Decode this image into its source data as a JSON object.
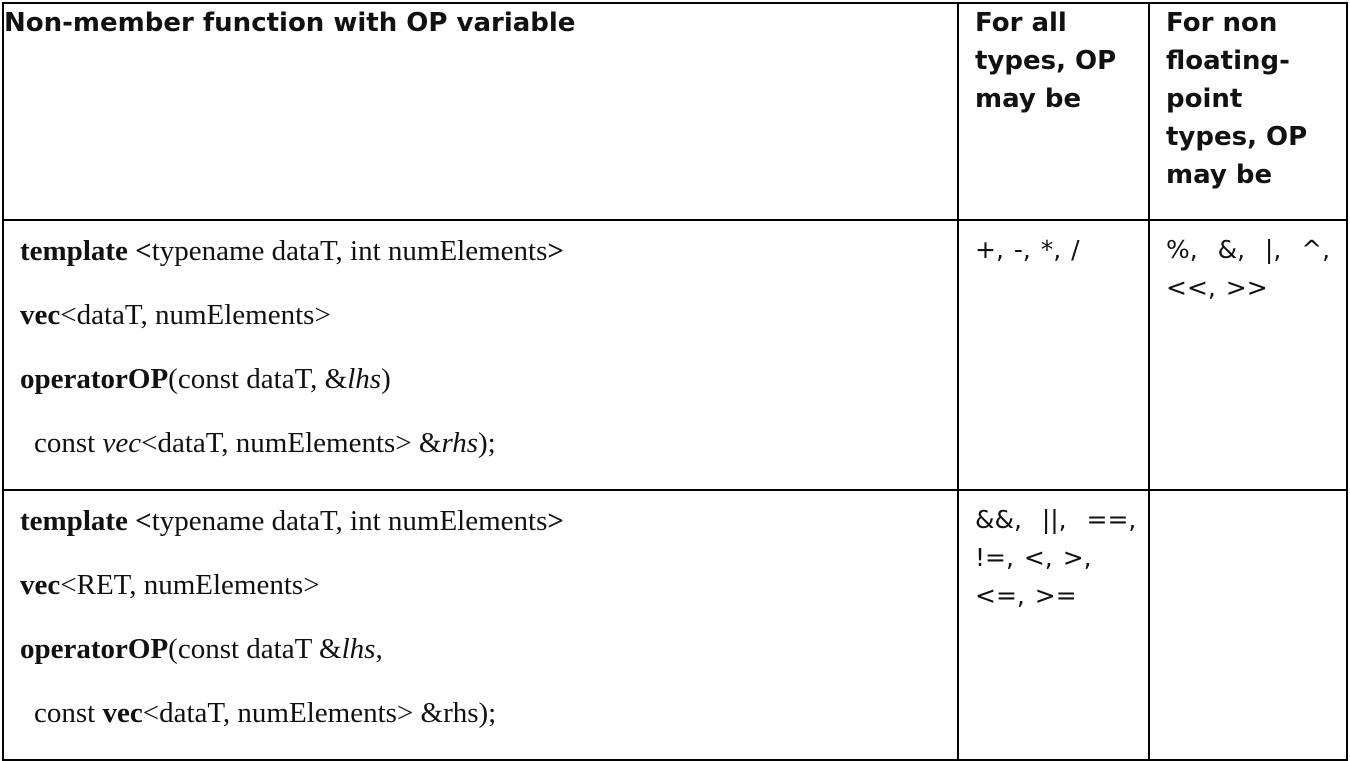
{
  "header": {
    "col1": "Non-member function with OP variable",
    "col2": "For all types, OP may be",
    "col3": "For non floating-point types, OP may be"
  },
  "rows": [
    {
      "lines": [
        {
          "kw": "template",
          "rest": " <",
          "mid": "typename dataT, int numElements",
          "end": ">"
        },
        {
          "kw": "vec",
          "rest": "<dataT, numElements>"
        },
        {
          "kw": "operatorOP",
          "rest": "(const dataT, &",
          "it": "lhs",
          "end": ")"
        },
        {
          "pre": "const ",
          "it1": "vec",
          "mid": "<dataT, numElements> &",
          "it2": "rhs",
          "end": ");"
        }
      ],
      "ops_all": "+, -, *, /",
      "ops_nonfloat": "%,  &,  |,  ^,  <<, >>"
    },
    {
      "lines": [
        {
          "kw": "template",
          "rest": " <",
          "mid": "typename dataT, int numElements",
          "end": ">"
        },
        {
          "kw": "vec",
          "rest": "<RET, numElements>"
        },
        {
          "kw": "operatorOP",
          "rest": "(const dataT &",
          "it": "lhs",
          "end": ","
        },
        {
          "pre": "const ",
          "kw": "vec",
          "rest": "<dataT, numElements> &rhs);"
        }
      ],
      "ops_all": "&&,  ||,  ==,  !=, <, >, <=, >=",
      "ops_nonfloat": ""
    }
  ]
}
